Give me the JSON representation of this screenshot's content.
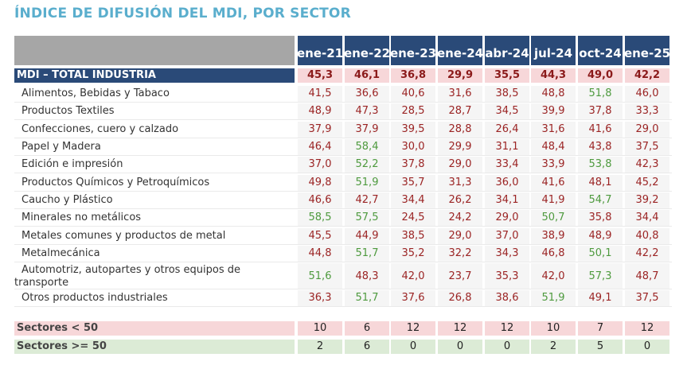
{
  "title": "ÍNDICE DE DIFUSIÓN DEL MDI, POR SECTOR",
  "columns": [
    "ene-21",
    "ene-22",
    "ene-23",
    "ene-24",
    "abr-24",
    "jul-24",
    "oct-24",
    "ene-25"
  ],
  "total": {
    "label": "MDI – TOTAL INDUSTRIA",
    "values": [
      "45,3",
      "46,1",
      "36,8",
      "29,9",
      "35,5",
      "44,3",
      "49,0",
      "42,2"
    ]
  },
  "rows": [
    {
      "label": "Alimentos, Bebidas y Tabaco",
      "values": [
        "41,5",
        "36,6",
        "40,6",
        "31,6",
        "38,5",
        "48,8",
        "51,8",
        "46,0"
      ]
    },
    {
      "label": "Productos Textiles",
      "values": [
        "48,9",
        "47,3",
        "28,5",
        "28,7",
        "34,5",
        "39,9",
        "37,8",
        "33,3"
      ]
    },
    {
      "label": "Confecciones, cuero y calzado",
      "values": [
        "37,9",
        "37,9",
        "39,5",
        "28,8",
        "26,4",
        "31,6",
        "41,6",
        "29,0"
      ]
    },
    {
      "label": "Papel y Madera",
      "values": [
        "46,4",
        "58,4",
        "30,0",
        "29,9",
        "31,1",
        "48,4",
        "43,8",
        "37,5"
      ]
    },
    {
      "label": "Edición e impresión",
      "values": [
        "37,0",
        "52,2",
        "37,8",
        "29,0",
        "33,4",
        "33,9",
        "53,8",
        "42,3"
      ]
    },
    {
      "label": "Productos Químicos y Petroquímicos",
      "values": [
        "49,8",
        "51,9",
        "35,7",
        "31,3",
        "36,0",
        "41,6",
        "48,1",
        "45,2"
      ]
    },
    {
      "label": "Caucho y Plástico",
      "values": [
        "46,6",
        "42,7",
        "34,4",
        "26,2",
        "34,1",
        "41,9",
        "54,7",
        "39,2"
      ]
    },
    {
      "label": "Minerales no metálicos",
      "values": [
        "58,5",
        "57,5",
        "24,5",
        "24,2",
        "29,0",
        "50,7",
        "35,8",
        "34,4"
      ]
    },
    {
      "label": "Metales comunes y productos de metal",
      "values": [
        "45,5",
        "44,9",
        "38,5",
        "29,0",
        "37,0",
        "38,9",
        "48,9",
        "40,8"
      ]
    },
    {
      "label": "Metalmecánica",
      "values": [
        "44,8",
        "51,7",
        "35,2",
        "32,2",
        "34,3",
        "46,8",
        "50,1",
        "42,2"
      ]
    },
    {
      "label": "Automotriz, autopartes y otros equipos de transporte",
      "label_line1": "Automotriz, autopartes y otros equipos de",
      "label_line2": "transporte",
      "values": [
        "51,6",
        "48,3",
        "42,0",
        "23,7",
        "35,3",
        "42,0",
        "57,3",
        "48,7"
      ]
    },
    {
      "label": "Otros productos industriales",
      "values": [
        "36,3",
        "51,7",
        "37,6",
        "26,8",
        "38,6",
        "51,9",
        "49,1",
        "37,5"
      ]
    }
  ],
  "summary": {
    "below": {
      "label": "Sectores < 50",
      "values": [
        "10",
        "6",
        "12",
        "12",
        "12",
        "10",
        "7",
        "12"
      ]
    },
    "above": {
      "label": "Sectores >= 50",
      "values": [
        "2",
        "6",
        "0",
        "0",
        "0",
        "2",
        "5",
        "0"
      ]
    }
  },
  "colors": {
    "title": "#5aaecd",
    "header_bg": "#2a4a78",
    "below_50": "#9b2424",
    "at_or_above_50": "#4e9a3e",
    "pink_band": "#f7d7d9",
    "green_band": "#dcebd6"
  }
}
